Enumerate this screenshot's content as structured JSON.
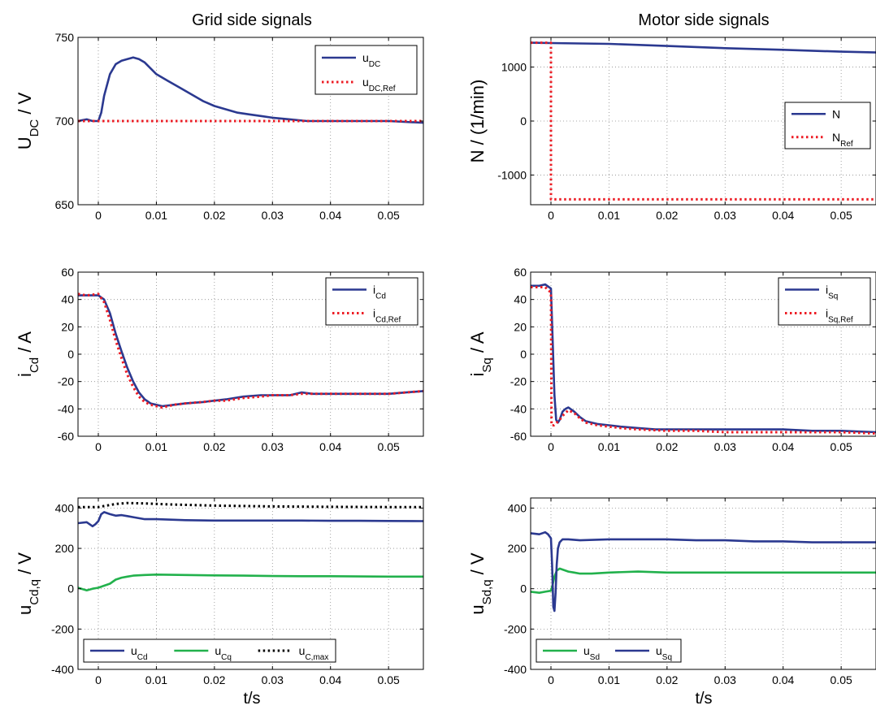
{
  "figure": {
    "left_column_title": "Grid side signals",
    "right_column_title": "Motor side signals",
    "left_xlabel": "t/s",
    "right_xlabel": "t/s"
  },
  "chart_data": [
    {
      "id": "udc",
      "type": "line",
      "ylabel": [
        [
          "U",
          "normal"
        ],
        [
          "DC",
          "sub"
        ],
        [
          " / V",
          "normal"
        ]
      ],
      "xlabel": "",
      "xlim": [
        -0.0035,
        0.056
      ],
      "ylim": [
        650,
        750
      ],
      "xticks": [
        0,
        0.01,
        0.02,
        0.03,
        0.04,
        0.05
      ],
      "xtick_labels": [
        "0",
        "0.01",
        "0.02",
        "0.03",
        "0.04",
        "0.05"
      ],
      "yticks": [
        650,
        700,
        750
      ],
      "ytick_labels": [
        "650",
        "700",
        "750"
      ],
      "grid": true,
      "legend": {
        "position": "top-right",
        "layout": "vertical"
      },
      "series": [
        {
          "name": [
            [
              "u",
              "normal"
            ],
            [
              "DC",
              "sub"
            ]
          ],
          "color": "#2b3990",
          "style": "solid",
          "x": [
            -0.0035,
            -0.002,
            -0.001,
            0,
            0.0005,
            0.001,
            0.002,
            0.003,
            0.004,
            0.005,
            0.006,
            0.007,
            0.008,
            0.01,
            0.012,
            0.014,
            0.016,
            0.018,
            0.02,
            0.022,
            0.024,
            0.026,
            0.028,
            0.03,
            0.033,
            0.036,
            0.04,
            0.045,
            0.05,
            0.056
          ],
          "y": [
            700,
            701,
            700,
            700,
            705,
            715,
            728,
            734,
            736,
            737,
            738,
            737,
            735,
            728,
            724,
            720,
            716,
            712,
            709,
            707,
            705,
            704,
            703,
            702,
            701,
            700,
            700,
            700,
            700,
            699
          ]
        },
        {
          "name": [
            [
              "u",
              "normal"
            ],
            [
              "DC,Ref",
              "sub"
            ]
          ],
          "color": "#ed1c24",
          "style": "dotted",
          "x": [
            -0.0035,
            0.056
          ],
          "y": [
            700,
            700
          ]
        }
      ]
    },
    {
      "id": "speed",
      "type": "line",
      "ylabel": [
        [
          "N / (1/min)",
          "normal"
        ]
      ],
      "xlabel": "",
      "xlim": [
        -0.0035,
        0.056
      ],
      "ylim": [
        -1550,
        1550
      ],
      "xticks": [
        0,
        0.01,
        0.02,
        0.03,
        0.04,
        0.05
      ],
      "xtick_labels": [
        "0",
        "0.01",
        "0.02",
        "0.03",
        "0.04",
        "0.05"
      ],
      "yticks": [
        -1000,
        0,
        1000
      ],
      "ytick_labels": [
        "-1000",
        "0",
        "1000"
      ],
      "grid": true,
      "legend": {
        "position": "middle-right",
        "layout": "vertical"
      },
      "series": [
        {
          "name": [
            [
              "N",
              "normal"
            ]
          ],
          "color": "#2b3990",
          "style": "solid",
          "x": [
            -0.0035,
            0,
            0.01,
            0.02,
            0.03,
            0.04,
            0.05,
            0.056
          ],
          "y": [
            1450,
            1445,
            1430,
            1390,
            1350,
            1320,
            1285,
            1270
          ]
        },
        {
          "name": [
            [
              "N",
              "normal"
            ],
            [
              "Ref",
              "sub"
            ]
          ],
          "color": "#ed1c24",
          "style": "dotted",
          "x": [
            -0.0035,
            0,
            0,
            0.056
          ],
          "y": [
            1450,
            1450,
            -1450,
            -1450
          ]
        }
      ]
    },
    {
      "id": "icd",
      "type": "line",
      "ylabel": [
        [
          "i",
          "normal"
        ],
        [
          "Cd",
          "sub"
        ],
        [
          " / A",
          "normal"
        ]
      ],
      "xlabel": "",
      "xlim": [
        -0.0035,
        0.056
      ],
      "ylim": [
        -60,
        60
      ],
      "xticks": [
        0,
        0.01,
        0.02,
        0.03,
        0.04,
        0.05
      ],
      "xtick_labels": [
        "0",
        "0.01",
        "0.02",
        "0.03",
        "0.04",
        "0.05"
      ],
      "yticks": [
        -60,
        -40,
        -20,
        0,
        20,
        40,
        60
      ],
      "ytick_labels": [
        "-60",
        "-40",
        "-20",
        "0",
        "20",
        "40",
        "60"
      ],
      "grid": true,
      "legend": {
        "position": "top-right",
        "layout": "vertical"
      },
      "series": [
        {
          "name": [
            [
              "i",
              "normal"
            ],
            [
              "Cd",
              "sub"
            ]
          ],
          "color": "#2b3990",
          "style": "solid",
          "x": [
            -0.0035,
            -0.002,
            0,
            0.001,
            0.002,
            0.003,
            0.004,
            0.005,
            0.006,
            0.007,
            0.008,
            0.009,
            0.01,
            0.011,
            0.013,
            0.015,
            0.018,
            0.02,
            0.022,
            0.025,
            0.028,
            0.03,
            0.033,
            0.035,
            0.037,
            0.04,
            0.045,
            0.05,
            0.056
          ],
          "y": [
            43,
            43,
            43,
            40,
            30,
            15,
            2,
            -10,
            -20,
            -28,
            -33,
            -36,
            -37,
            -38,
            -37,
            -36,
            -35,
            -34,
            -33,
            -31,
            -30,
            -30,
            -30,
            -28,
            -29,
            -29,
            -29,
            -29,
            -27
          ]
        },
        {
          "name": [
            [
              "i",
              "normal"
            ],
            [
              "Cd,Ref",
              "sub"
            ]
          ],
          "color": "#ed1c24",
          "style": "dotted",
          "x": [
            -0.0035,
            -0.002,
            0,
            0.001,
            0.002,
            0.003,
            0.004,
            0.005,
            0.006,
            0.007,
            0.008,
            0.009,
            0.01,
            0.011,
            0.013,
            0.015,
            0.018,
            0.02,
            0.022,
            0.025,
            0.028,
            0.03,
            0.033,
            0.035,
            0.037,
            0.04,
            0.045,
            0.05,
            0.056
          ],
          "y": [
            44,
            43,
            44,
            38,
            25,
            10,
            -3,
            -15,
            -24,
            -31,
            -35,
            -37,
            -38,
            -39,
            -37,
            -36,
            -35,
            -34,
            -34,
            -32,
            -31,
            -30,
            -30,
            -29,
            -29,
            -29,
            -29,
            -29,
            -27
          ]
        }
      ]
    },
    {
      "id": "isq",
      "type": "line",
      "ylabel": [
        [
          "i",
          "normal"
        ],
        [
          "Sq",
          "sub"
        ],
        [
          " / A",
          "normal"
        ]
      ],
      "xlabel": "",
      "xlim": [
        -0.0035,
        0.056
      ],
      "ylim": [
        -60,
        60
      ],
      "xticks": [
        0,
        0.01,
        0.02,
        0.03,
        0.04,
        0.05
      ],
      "xtick_labels": [
        "0",
        "0.01",
        "0.02",
        "0.03",
        "0.04",
        "0.05"
      ],
      "yticks": [
        -60,
        -40,
        -20,
        0,
        20,
        40,
        60
      ],
      "ytick_labels": [
        "-60",
        "-40",
        "-20",
        "0",
        "20",
        "40",
        "60"
      ],
      "grid": true,
      "legend": {
        "position": "top-right",
        "layout": "vertical"
      },
      "series": [
        {
          "name": [
            [
              "i",
              "normal"
            ],
            [
              "Sq",
              "sub"
            ]
          ],
          "color": "#2b3990",
          "style": "solid",
          "x": [
            -0.0035,
            -0.002,
            -0.001,
            0,
            0.0003,
            0.0006,
            0.0009,
            0.0012,
            0.0015,
            0.002,
            0.0025,
            0.003,
            0.004,
            0.005,
            0.006,
            0.008,
            0.01,
            0.012,
            0.015,
            0.018,
            0.02,
            0.025,
            0.03,
            0.035,
            0.04,
            0.045,
            0.05,
            0.056
          ],
          "y": [
            50,
            50,
            51,
            48,
            10,
            -30,
            -48,
            -50,
            -48,
            -42,
            -40,
            -39,
            -42,
            -46,
            -49,
            -51,
            -52,
            -53,
            -54,
            -55,
            -55,
            -55,
            -55,
            -55,
            -55,
            -56,
            -56,
            -57
          ]
        },
        {
          "name": [
            [
              "i",
              "normal"
            ],
            [
              "Sq,Ref",
              "sub"
            ]
          ],
          "color": "#ed1c24",
          "style": "dotted",
          "x": [
            -0.0035,
            -0.001,
            0,
            0.0001,
            0.0005,
            0.001,
            0.0015,
            0.002,
            0.003,
            0.004,
            0.005,
            0.006,
            0.008,
            0.01,
            0.012,
            0.015,
            0.02,
            0.025,
            0.03,
            0.035,
            0.04,
            0.045,
            0.05,
            0.056
          ],
          "y": [
            49,
            49,
            45,
            -52,
            -52,
            -50,
            -48,
            -45,
            -41,
            -43,
            -47,
            -50,
            -52,
            -53,
            -54,
            -55,
            -56,
            -56,
            -57,
            -57,
            -57,
            -57,
            -57,
            -58
          ]
        }
      ]
    },
    {
      "id": "ucdq",
      "type": "line",
      "ylabel": [
        [
          "u",
          "normal"
        ],
        [
          "Cd,q",
          "sub"
        ],
        [
          " / V",
          "normal"
        ]
      ],
      "xlabel": "t/s",
      "xlim": [
        -0.0035,
        0.056
      ],
      "ylim": [
        -400,
        450
      ],
      "xticks": [
        0,
        0.01,
        0.02,
        0.03,
        0.04,
        0.05
      ],
      "xtick_labels": [
        "0",
        "0.01",
        "0.02",
        "0.03",
        "0.04",
        "0.05"
      ],
      "yticks": [
        -400,
        -200,
        0,
        200,
        400
      ],
      "ytick_labels": [
        "-400",
        "-200",
        "0",
        "200",
        "400"
      ],
      "grid": true,
      "legend": {
        "position": "bottom-left",
        "layout": "horizontal"
      },
      "series": [
        {
          "name": [
            [
              "u",
              "normal"
            ],
            [
              "Cd",
              "sub"
            ]
          ],
          "color": "#2b3990",
          "style": "solid",
          "x": [
            -0.0035,
            -0.002,
            -0.001,
            -0.0005,
            0,
            0.0005,
            0.001,
            0.002,
            0.003,
            0.004,
            0.005,
            0.006,
            0.008,
            0.01,
            0.015,
            0.02,
            0.025,
            0.03,
            0.035,
            0.04,
            0.045,
            0.05,
            0.056
          ],
          "y": [
            325,
            330,
            310,
            320,
            335,
            370,
            380,
            370,
            362,
            365,
            360,
            355,
            345,
            345,
            340,
            338,
            338,
            338,
            338,
            337,
            337,
            336,
            335
          ]
        },
        {
          "name": [
            [
              "u",
              "normal"
            ],
            [
              "Cq",
              "sub"
            ]
          ],
          "color": "#22b14c",
          "style": "solid",
          "x": [
            -0.0035,
            -0.002,
            -0.001,
            0,
            0.001,
            0.002,
            0.003,
            0.004,
            0.005,
            0.006,
            0.008,
            0.01,
            0.015,
            0.02,
            0.025,
            0.03,
            0.035,
            0.04,
            0.045,
            0.05,
            0.056
          ],
          "y": [
            5,
            -8,
            0,
            5,
            15,
            25,
            45,
            55,
            60,
            65,
            68,
            70,
            68,
            66,
            65,
            63,
            62,
            62,
            61,
            60,
            60
          ]
        },
        {
          "name": [
            [
              "u",
              "normal"
            ],
            [
              "C,max",
              "sub"
            ]
          ],
          "color": "#000000",
          "style": "dotted",
          "x": [
            -0.0035,
            0,
            0.001,
            0.003,
            0.005,
            0.008,
            0.012,
            0.02,
            0.03,
            0.04,
            0.05,
            0.056
          ],
          "y": [
            405,
            405,
            410,
            420,
            425,
            423,
            418,
            412,
            408,
            406,
            405,
            405
          ]
        }
      ]
    },
    {
      "id": "usdq",
      "type": "line",
      "ylabel": [
        [
          "u",
          "normal"
        ],
        [
          "Sd,q",
          "sub"
        ],
        [
          " / V",
          "normal"
        ]
      ],
      "xlabel": "t/s",
      "xlim": [
        -0.0035,
        0.056
      ],
      "ylim": [
        -400,
        450
      ],
      "xticks": [
        0,
        0.01,
        0.02,
        0.03,
        0.04,
        0.05
      ],
      "xtick_labels": [
        "0",
        "0.01",
        "0.02",
        "0.03",
        "0.04",
        "0.05"
      ],
      "yticks": [
        -400,
        -200,
        0,
        200,
        400
      ],
      "ytick_labels": [
        "-400",
        "-200",
        "0",
        "200",
        "400"
      ],
      "grid": true,
      "legend": {
        "position": "bottom-left",
        "layout": "horizontal"
      },
      "series": [
        {
          "name": [
            [
              "u",
              "normal"
            ],
            [
              "Sd",
              "sub"
            ]
          ],
          "color": "#22b14c",
          "style": "solid",
          "x": [
            -0.0035,
            -0.002,
            -0.001,
            0,
            0.0003,
            0.0006,
            0.001,
            0.0015,
            0.002,
            0.003,
            0.004,
            0.005,
            0.007,
            0.01,
            0.015,
            0.02,
            0.025,
            0.03,
            0.035,
            0.04,
            0.045,
            0.05,
            0.056
          ],
          "y": [
            -15,
            -20,
            -15,
            -10,
            20,
            60,
            90,
            100,
            95,
            85,
            80,
            75,
            75,
            80,
            85,
            80,
            80,
            80,
            80,
            80,
            80,
            80,
            80
          ]
        },
        {
          "name": [
            [
              "u",
              "normal"
            ],
            [
              "Sq",
              "sub"
            ]
          ],
          "color": "#2b3990",
          "style": "solid",
          "x": [
            -0.0035,
            -0.002,
            -0.001,
            -0.0005,
            0,
            0.0002,
            0.0004,
            0.0006,
            0.0008,
            0.001,
            0.0012,
            0.0015,
            0.002,
            0.003,
            0.005,
            0.01,
            0.015,
            0.02,
            0.025,
            0.03,
            0.035,
            0.04,
            0.045,
            0.05,
            0.056
          ],
          "y": [
            275,
            270,
            280,
            270,
            250,
            120,
            -90,
            -110,
            -20,
            120,
            200,
            230,
            245,
            245,
            240,
            245,
            245,
            245,
            240,
            240,
            235,
            235,
            230,
            230,
            230
          ]
        }
      ]
    }
  ]
}
